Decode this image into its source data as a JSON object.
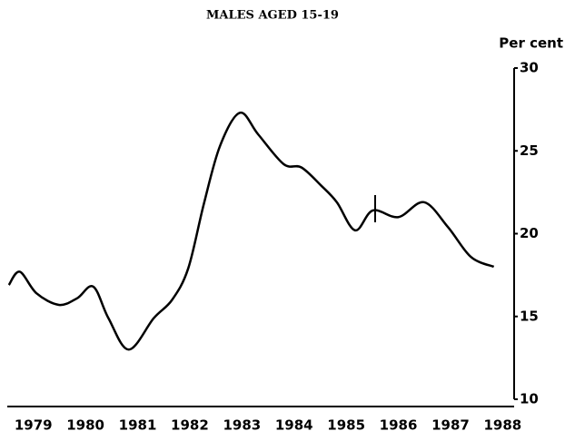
{
  "chart_data": {
    "type": "line",
    "title": "MALES AGED 15-19",
    "y_label": "Per cent",
    "x": [
      1978.53,
      1978.74,
      1979.06,
      1979.49,
      1979.84,
      1980.15,
      1980.44,
      1980.83,
      1981.31,
      1981.66,
      1981.97,
      1982.27,
      1982.58,
      1982.96,
      1983.31,
      1983.8,
      1984.14,
      1984.52,
      1984.82,
      1985.17,
      1985.51,
      1986.0,
      1986.49,
      1986.95,
      1987.39,
      1987.83
    ],
    "series": [
      {
        "name": "Males aged 15-19",
        "color": "#000000",
        "values": [
          16.9,
          17.7,
          16.4,
          15.7,
          16.1,
          16.8,
          14.9,
          13.0,
          14.9,
          16.0,
          17.9,
          21.8,
          25.3,
          27.3,
          26.0,
          24.2,
          24.0,
          22.9,
          21.9,
          20.2,
          21.4,
          21.0,
          21.9,
          20.4,
          18.6,
          18.0
        ]
      }
    ],
    "xlim": [
      1978.5,
      1988.22
    ],
    "xticks": [
      1979,
      1980,
      1981,
      1982,
      1983,
      1984,
      1985,
      1986,
      1987,
      1988
    ],
    "ylim": [
      10,
      30
    ],
    "yticks": [
      10,
      15,
      20,
      25,
      30
    ]
  }
}
